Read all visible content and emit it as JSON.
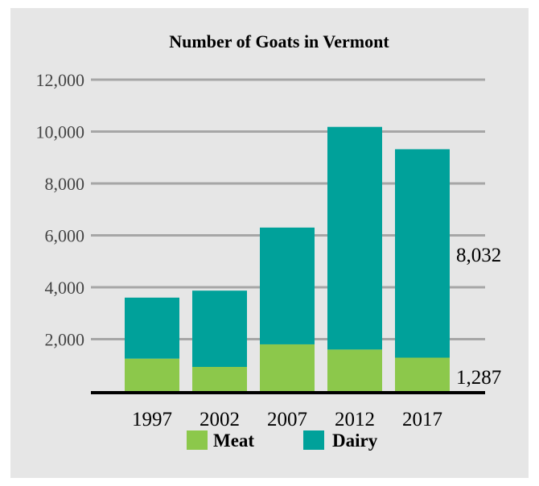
{
  "chart_data": {
    "type": "bar",
    "stacked": true,
    "title": "Number of Goats in Vermont",
    "xlabel": "",
    "ylabel": "",
    "categories": [
      "1997",
      "2002",
      "2007",
      "2012",
      "2017"
    ],
    "series": [
      {
        "name": "Meat",
        "color": "#8cc84b",
        "values": [
          1250,
          930,
          1800,
          1600,
          1287
        ]
      },
      {
        "name": "Dairy",
        "color": "#00a19a",
        "values": [
          2350,
          2940,
          4500,
          8580,
          8032
        ]
      }
    ],
    "ylim": [
      0,
      12000
    ],
    "yticks": [
      2000,
      4000,
      6000,
      8000,
      10000,
      12000
    ],
    "ytick_labels": [
      "2,000",
      "4,000",
      "6,000",
      "8,000",
      "10,000",
      "12,000"
    ],
    "grid": true,
    "legend_position": "bottom",
    "annotations": [
      {
        "text": "8,032",
        "series": "Dairy",
        "category": "2017"
      },
      {
        "text": "1,287",
        "series": "Meat",
        "category": "2017"
      }
    ]
  }
}
